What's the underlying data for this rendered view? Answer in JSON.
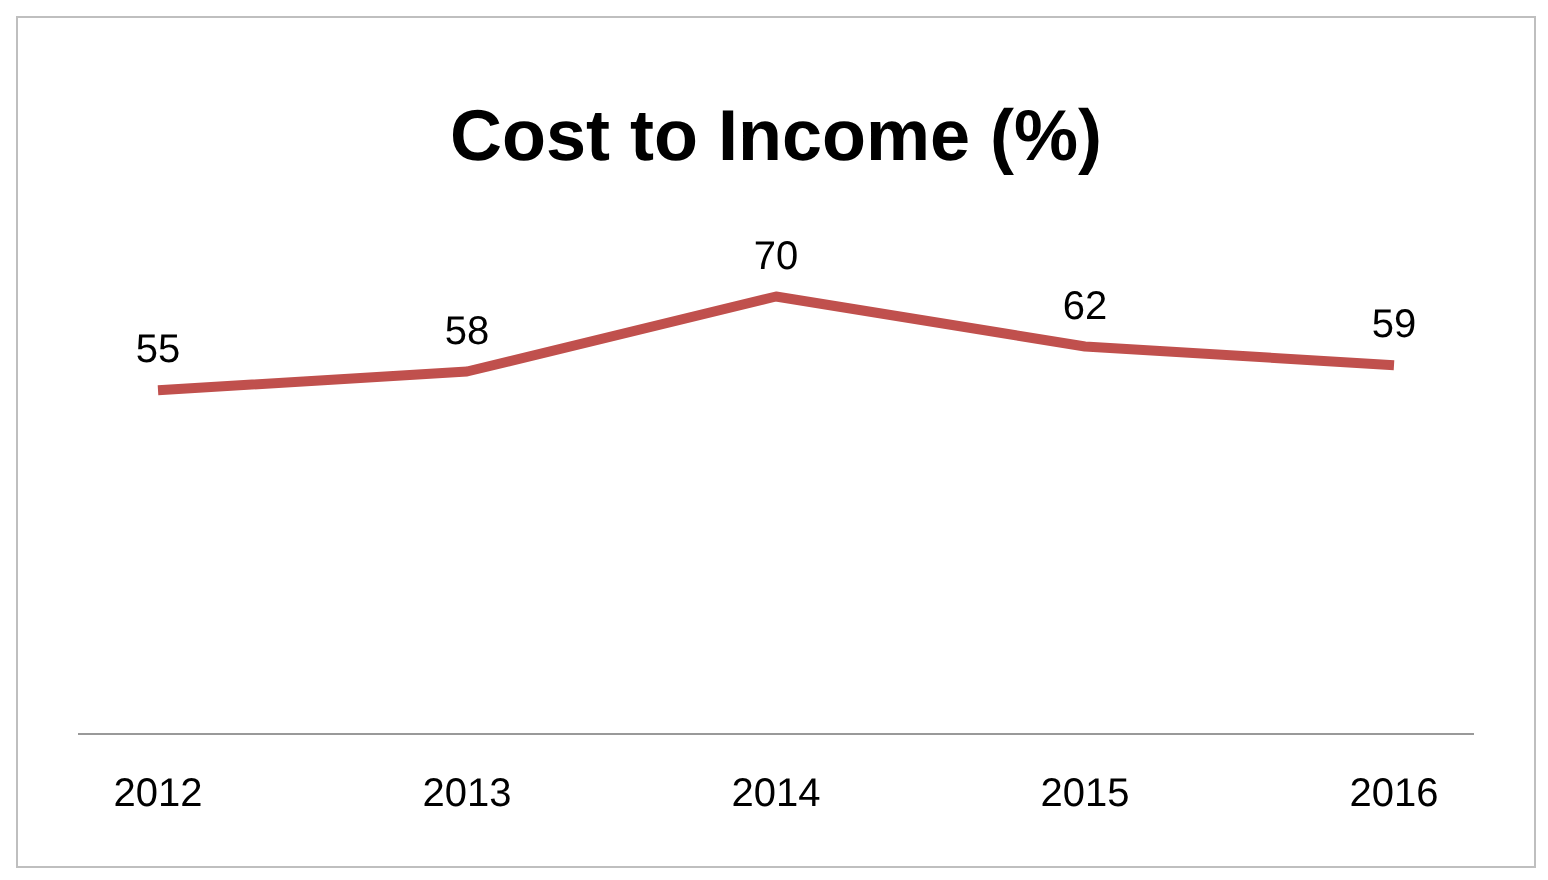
{
  "chart_data": {
    "type": "line",
    "title": "Cost to Income (%)",
    "categories": [
      "2012",
      "2013",
      "2014",
      "2015",
      "2016"
    ],
    "series": [
      {
        "color": "#c0504d",
        "values": [
          55,
          58,
          70,
          62,
          59
        ]
      }
    ],
    "data_labels": true,
    "marker": "none",
    "line_style": "solid"
  }
}
